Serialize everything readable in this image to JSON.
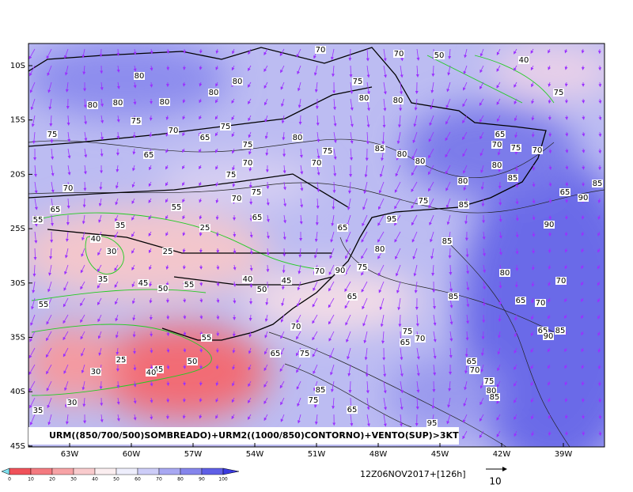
{
  "map": {
    "title": "URM((850/700/500)SOMBREADO)+URM2((1000/850)CONTORNO)+VENTO(SUP)>3KT",
    "lat_labels": [
      "10S",
      "15S",
      "20S",
      "25S",
      "30S",
      "35S",
      "40S",
      "45S"
    ],
    "lon_labels": [
      "63W",
      "60W",
      "57W",
      "54W",
      "51W",
      "48W",
      "45W",
      "42W",
      "39W"
    ],
    "contour_labels": [
      "80",
      "80",
      "80",
      "80",
      "80",
      "80",
      "75",
      "80",
      "80",
      "70",
      "70",
      "75",
      "70",
      "75",
      "65",
      "75",
      "65",
      "75",
      "80",
      "75",
      "85",
      "80",
      "80",
      "70",
      "70",
      "75",
      "70",
      "75",
      "70",
      "65",
      "65",
      "50",
      "40",
      "75",
      "65",
      "70",
      "75",
      "70",
      "80",
      "85",
      "80",
      "65",
      "90",
      "85",
      "90",
      "85",
      "80",
      "70",
      "65",
      "70",
      "85",
      "65",
      "70",
      "90",
      "75",
      "80",
      "65",
      "95",
      "75",
      "85",
      "55",
      "40",
      "30",
      "35",
      "45",
      "50",
      "55",
      "40",
      "50",
      "45",
      "55",
      "70",
      "75",
      "65",
      "75",
      "70",
      "65",
      "65",
      "75",
      "80",
      "85",
      "70",
      "65",
      "95",
      "85",
      "75",
      "30",
      "25",
      "35",
      "30",
      "50",
      "45",
      "40",
      "55",
      "25",
      "25",
      "55",
      "35",
      "65",
      "90",
      "85"
    ]
  },
  "colorbar": {
    "labels": [
      0,
      10,
      20,
      30,
      40,
      50,
      60,
      70,
      80,
      90,
      100
    ],
    "colors": [
      "#f0525a",
      "#f47a80",
      "#f7a3a6",
      "#f9cbcd",
      "#fbeef0",
      "#eeeefc",
      "#cdcdf8",
      "#a8a8f2",
      "#8585ec",
      "#5f5fe6"
    ]
  },
  "footer": {
    "date": "12Z06NOV2017+[126h]",
    "vector_scale": "10"
  }
}
